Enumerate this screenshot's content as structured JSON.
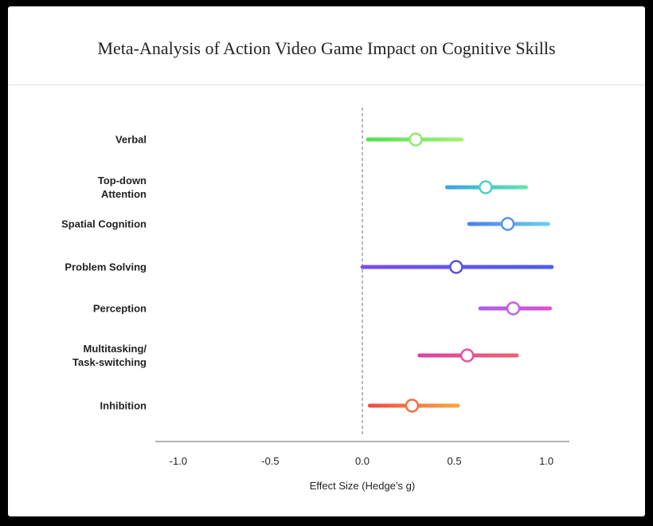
{
  "chart_data": {
    "type": "forest",
    "title": "Meta-Analysis of Action Video Game Impact on Cognitive Skills",
    "x_label": "Effect Size (Hedge’s g)",
    "categories": [
      "Verbal",
      "Top-down\nAttention",
      "Spatial Cognition",
      "Problem Solving",
      "Perception",
      "Multitasking/\nTask-switching",
      "Inhibition"
    ],
    "low": [
      0.02,
      0.45,
      0.57,
      -0.01,
      0.63,
      0.3,
      0.03
    ],
    "estimate": [
      0.29,
      0.67,
      0.79,
      0.51,
      0.82,
      0.57,
      0.27
    ],
    "high": [
      0.55,
      0.9,
      1.02,
      1.04,
      1.03,
      0.85,
      0.53
    ],
    "colors": [
      [
        "#4ee04e",
        "#a8f07a"
      ],
      [
        "#3aa0e8",
        "#5ee8a8"
      ],
      [
        "#4a7ef0",
        "#6ad0f0"
      ],
      [
        "#7a4cf0",
        "#4a5cf0"
      ],
      [
        "#a860f0",
        "#e050d0"
      ],
      [
        "#e040a0",
        "#f06070"
      ],
      [
        "#f04848",
        "#f8a840"
      ]
    ],
    "marker_colors": [
      "#8fe86a",
      "#4fd0c0",
      "#5a90f0",
      "#5a50e0",
      "#c860e0",
      "#e850a0",
      "#f07040"
    ],
    "xlim": [
      -1.125,
      1.125
    ],
    "xticks": [
      {
        "value": -1,
        "label": "-1.0"
      },
      {
        "value": -0.5,
        "label": "-0.5"
      },
      {
        "value": 0,
        "label": "0.0"
      },
      0.5,
      {
        "value": 1,
        "label": "1.0"
      }
    ],
    "reference_line": 0
  }
}
